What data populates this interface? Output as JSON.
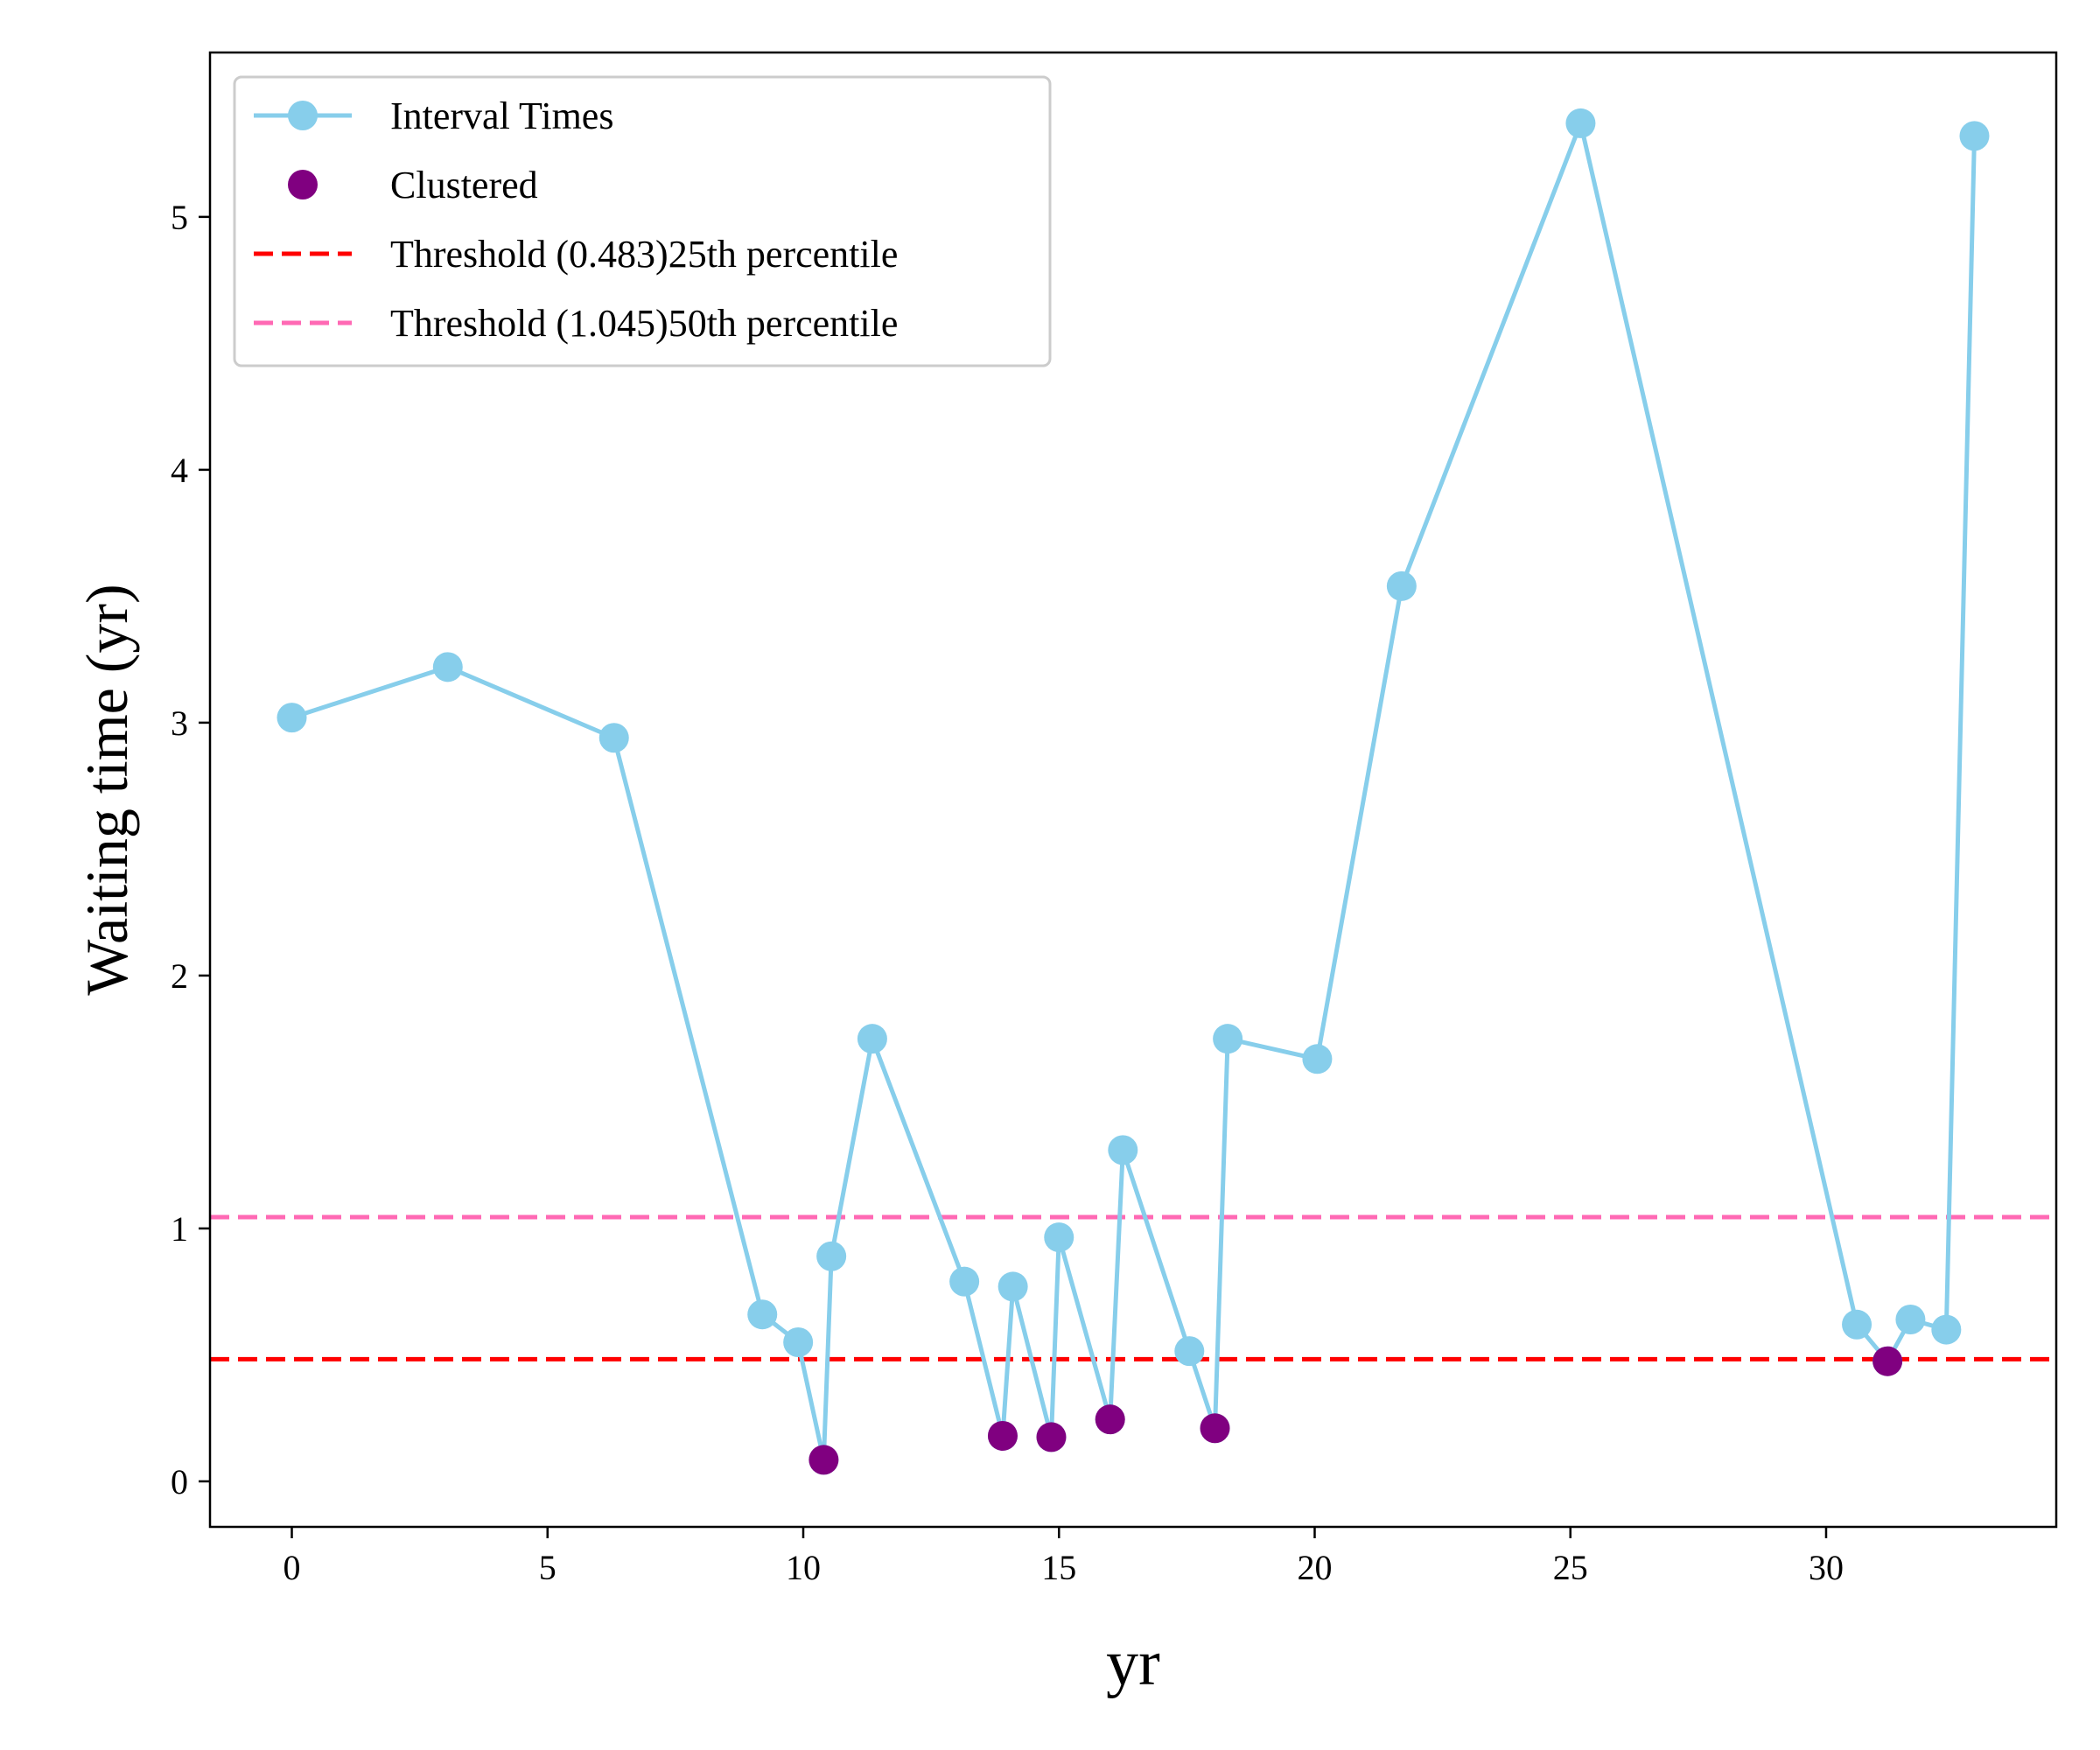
{
  "chart_data": {
    "type": "line",
    "xlabel": "yr",
    "ylabel": "Waiting time (yr)",
    "xlim": [
      -1.6,
      34.5
    ],
    "ylim": [
      -0.18,
      5.65
    ],
    "xticks": [
      0,
      5,
      10,
      15,
      20,
      25,
      30
    ],
    "yticks": [
      0,
      1,
      2,
      3,
      4,
      5
    ],
    "grid": false,
    "legend_position": "upper-left",
    "series": [
      {
        "name": "Interval Times",
        "style": "line-markers",
        "color": "#87CEEB",
        "x": [
          0,
          3.05,
          6.3,
          9.2,
          9.9,
          10.4,
          10.55,
          11.35,
          13.15,
          13.9,
          14.1,
          14.85,
          15.0,
          16.0,
          16.25,
          17.55,
          18.05,
          18.3,
          20.05,
          21.7,
          25.2,
          30.6,
          31.2,
          31.65,
          32.35,
          32.9
        ],
        "y": [
          3.02,
          3.22,
          2.94,
          0.66,
          0.55,
          0.085,
          0.89,
          1.75,
          0.79,
          0.18,
          0.77,
          0.175,
          0.965,
          0.245,
          1.31,
          0.515,
          0.21,
          1.75,
          1.67,
          3.54,
          5.37,
          0.62,
          0.475,
          0.64,
          0.6,
          5.32
        ]
      },
      {
        "name": "Clustered",
        "style": "markers",
        "color": "#800080",
        "x": [
          10.4,
          13.9,
          14.85,
          16.0,
          18.05,
          31.2
        ],
        "y": [
          0.085,
          0.18,
          0.175,
          0.245,
          0.21,
          0.475
        ]
      }
    ],
    "thresholds": [
      {
        "name": "Threshold (0.483)25th percentile",
        "value": 0.483,
        "color": "#ff0000"
      },
      {
        "name": "Threshold (1.045)50th percentile",
        "value": 1.045,
        "color": "#ff69b4"
      }
    ]
  }
}
